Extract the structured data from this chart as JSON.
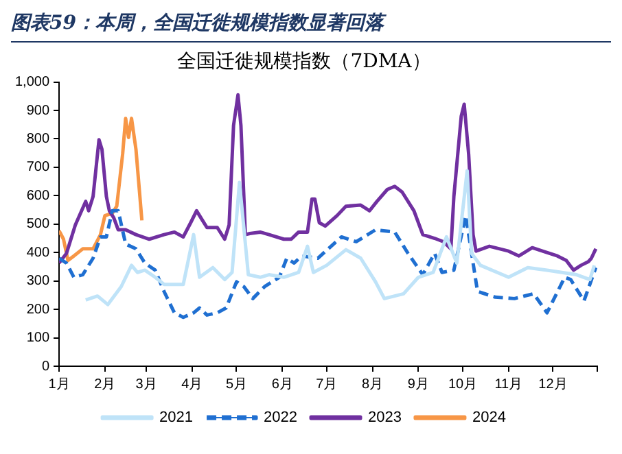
{
  "chart_data": {
    "type": "line",
    "title": "图表59：本周，全国迁徙规模指数显著回落",
    "subtitle": "全国迁徙规模指数（7DMA）",
    "xlim": [
      "--01-01",
      "--12-31"
    ],
    "xticks": [
      {
        "value": "--01-01",
        "label": "1月"
      },
      {
        "value": "--02-01",
        "label": "2月"
      },
      {
        "value": "--03-01",
        "label": "3月"
      },
      {
        "value": "--04-01",
        "label": "4月"
      },
      {
        "value": "--05-01",
        "label": "5月"
      },
      {
        "value": "--06-01",
        "label": "6月"
      },
      {
        "value": "--07-01",
        "label": "7月"
      },
      {
        "value": "--08-01",
        "label": "8月"
      },
      {
        "value": "--09-01",
        "label": "9月"
      },
      {
        "value": "--10-01",
        "label": "10月"
      },
      {
        "value": "--11-01",
        "label": "11月"
      },
      {
        "value": "--12-01",
        "label": "12月"
      },
      {
        "value": "--12-31",
        "label": null
      }
    ],
    "ylim": [
      0,
      1000
    ],
    "yticks": [
      0,
      100,
      200,
      300,
      400,
      500,
      600,
      700,
      800,
      900,
      {
        "value": 1000,
        "label": "1,000"
      }
    ],
    "grid": false,
    "legend": "bottom",
    "marker": "none",
    "series": [
      {
        "name": "2021",
        "color": "#bfe3f8",
        "x": [
          "--01-19",
          "--01-27",
          "--02-03",
          "--02-12",
          "--02-19",
          "--02-23",
          "--02-28",
          "--03-07",
          "--03-13",
          "--03-26",
          "--04-02",
          "--04-06",
          "--04-15",
          "--04-23",
          "--04-28",
          "--05-03",
          "--05-09",
          "--05-17",
          "--05-23",
          "--06-02",
          "--06-12",
          "--06-18",
          "--06-22",
          "--07-01",
          "--07-14",
          "--07-24",
          "--08-03",
          "--08-09",
          "--08-22",
          "--09-01",
          "--09-11",
          "--09-20",
          "--09-27",
          "--10-04",
          "--10-07",
          "--10-13",
          "--11-01",
          "--11-14",
          "--11-27",
          "--12-17",
          "--12-26",
          "--12-29"
        ],
        "values": [
          233,
          247,
          217,
          280,
          355,
          330,
          338,
          313,
          288,
          288,
          463,
          313,
          347,
          305,
          330,
          647,
          322,
          313,
          322,
          313,
          330,
          422,
          330,
          355,
          410,
          380,
          297,
          238,
          255,
          313,
          330,
          455,
          363,
          688,
          397,
          355,
          313,
          347,
          338,
          322,
          305,
          355
        ]
      },
      {
        "name": "2022",
        "color": "#1f6fd1",
        "line_style": "dashed",
        "x": [
          "--01-01",
          "--01-06",
          "--01-11",
          "--01-17",
          "--01-24",
          "--01-29",
          "--02-02",
          "--02-06",
          "--02-10",
          "--02-15",
          "--02-22",
          "--02-28",
          "--03-07",
          "--03-13",
          "--03-20",
          "--03-26",
          "--04-02",
          "--04-06",
          "--04-11",
          "--04-18",
          "--04-24",
          "--05-01",
          "--05-06",
          "--05-12",
          "--05-20",
          "--05-30",
          "--06-04",
          "--06-09",
          "--06-14",
          "--06-25",
          "--07-11",
          "--07-21",
          "--08-03",
          "--08-16",
          "--08-25",
          "--09-04",
          "--09-12",
          "--09-17",
          "--09-25",
          "--10-03",
          "--10-06",
          "--10-11",
          "--10-23",
          "--11-05",
          "--11-18",
          "--11-27",
          "--12-09",
          "--12-13",
          "--12-22",
          "--12-30"
        ],
        "values": [
          380,
          363,
          313,
          322,
          380,
          455,
          455,
          547,
          547,
          430,
          413,
          363,
          338,
          263,
          188,
          172,
          188,
          205,
          180,
          188,
          205,
          297,
          280,
          238,
          280,
          313,
          380,
          363,
          388,
          380,
          455,
          438,
          480,
          472,
          397,
          322,
          397,
          330,
          338,
          530,
          430,
          263,
          243,
          238,
          255,
          188,
          313,
          305,
          230,
          347
        ]
      },
      {
        "name": "2023",
        "color": "#7030a0",
        "x": [
          "--01-01",
          "--01-06",
          "--01-12",
          "--01-19",
          "--01-21",
          "--01-24",
          "--01-28",
          "--01-30",
          "--02-02",
          "--02-04",
          "--02-07",
          "--02-10",
          "--02-15",
          "--02-22",
          "--03-03",
          "--03-13",
          "--03-20",
          "--03-26",
          "--03-31",
          "--04-04",
          "--04-08",
          "--04-11",
          "--04-18",
          "--04-23",
          "--04-26",
          "--04-29",
          "--05-02",
          "--05-04",
          "--05-07",
          "--05-10",
          "--05-17",
          "--05-23",
          "--06-02",
          "--06-07",
          "--06-12",
          "--06-18",
          "--06-21",
          "--06-23",
          "--06-26",
          "--06-30",
          "--07-08",
          "--07-14",
          "--07-24",
          "--07-30",
          "--08-04",
          "--08-11",
          "--08-16",
          "--08-21",
          "--08-29",
          "--09-04",
          "--09-12",
          "--09-18",
          "--09-23",
          "--09-25",
          "--09-30",
          "--10-02",
          "--10-05",
          "--10-08",
          "--10-10",
          "--10-19",
          "--10-26",
          "--11-01",
          "--11-08",
          "--11-17",
          "--11-24",
          "--12-04",
          "--12-10",
          "--12-15",
          "--12-20",
          "--12-25",
          "--12-27",
          "--12-30"
        ],
        "values": [
          363,
          397,
          497,
          580,
          547,
          597,
          797,
          763,
          597,
          547,
          522,
          480,
          480,
          463,
          447,
          463,
          472,
          455,
          505,
          547,
          513,
          488,
          488,
          447,
          497,
          847,
          955,
          847,
          463,
          467,
          472,
          463,
          447,
          447,
          472,
          472,
          588,
          588,
          505,
          493,
          530,
          563,
          567,
          547,
          580,
          622,
          633,
          613,
          547,
          463,
          450,
          438,
          413,
          597,
          880,
          922,
          747,
          463,
          405,
          422,
          413,
          405,
          388,
          417,
          405,
          388,
          372,
          338,
          355,
          368,
          380,
          413
        ]
      },
      {
        "name": "2024",
        "color": "#f79646",
        "x": [
          "--01-01",
          "--01-04",
          "--01-07",
          "--01-11",
          "--01-17",
          "--01-24",
          "--01-29",
          "--02-01",
          "--02-06",
          "--02-09",
          "--02-13",
          "--02-15",
          "--02-17",
          "--02-19",
          "--02-22",
          "--02-26"
        ],
        "values": [
          477,
          447,
          372,
          388,
          413,
          413,
          463,
          530,
          538,
          563,
          747,
          872,
          805,
          872,
          763,
          513
        ]
      }
    ]
  }
}
